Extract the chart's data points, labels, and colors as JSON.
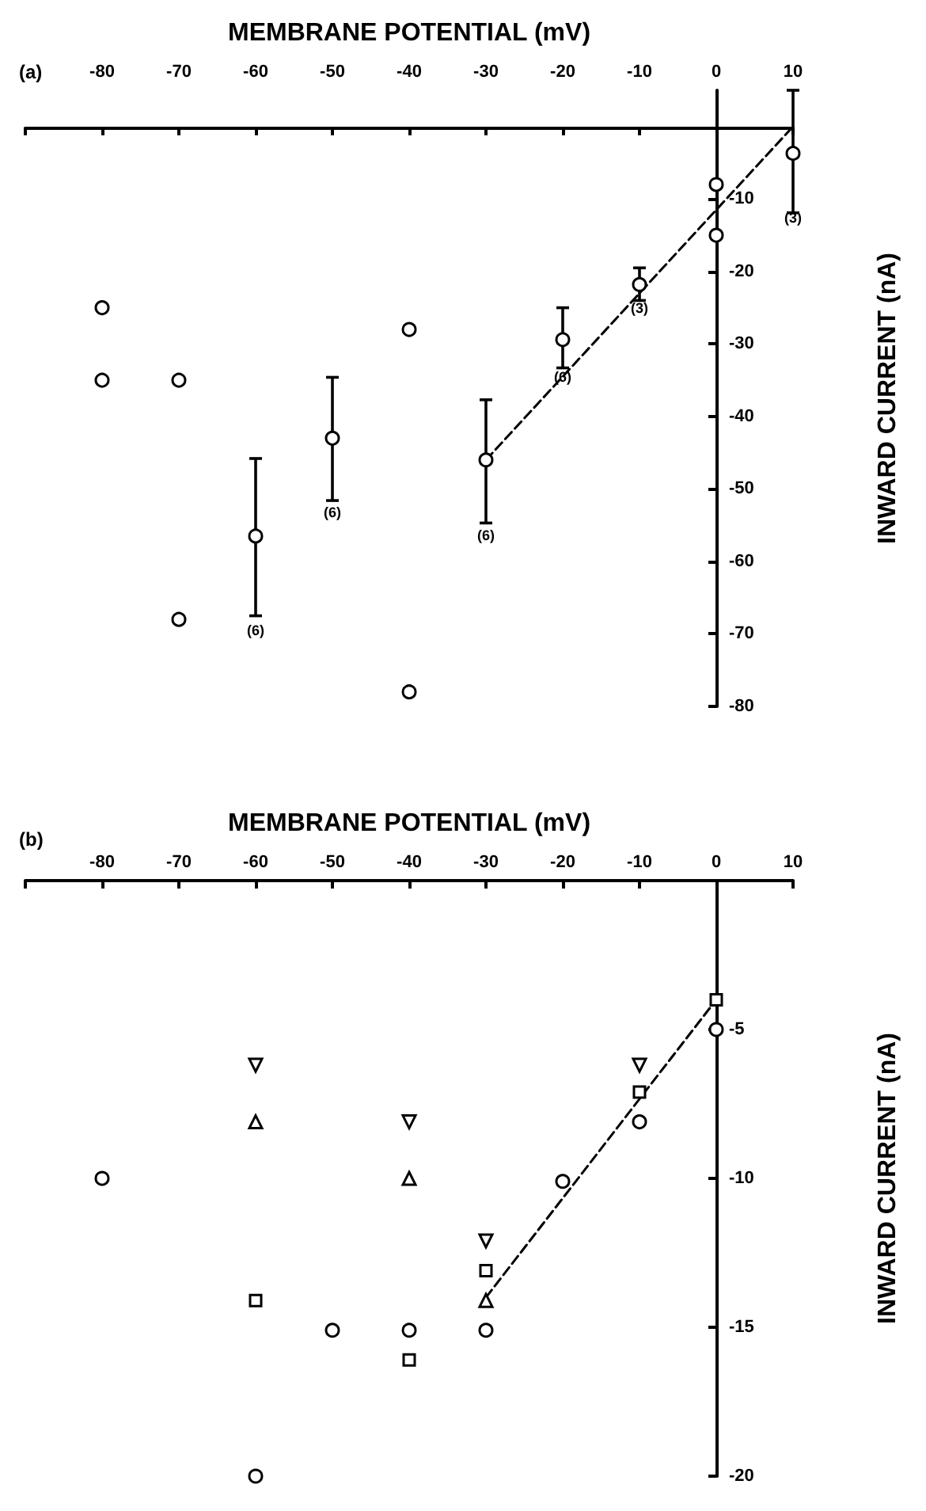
{
  "chart_data": [
    {
      "type": "scatter",
      "xlabel": "MEMBRANE POTENTIAL (mV)",
      "ylabel": "INWARD CURRENT (nA)",
      "xlim": [
        -90,
        10
      ],
      "xticks": [
        {
          "value": -90,
          "label": null
        },
        -80,
        -70,
        -60,
        -50,
        -40,
        -30,
        -20,
        -10,
        0,
        10
      ],
      "ylim": [
        -80,
        5
      ],
      "yticks": [
        -80,
        -70,
        -60,
        -50,
        -40,
        -30,
        -20,
        -10
      ],
      "grid": false,
      "series": [
        {
          "marker": "circle",
          "color": "#000000",
          "x": [
            -80,
            -80,
            -70,
            -70,
            -60,
            -50,
            -40,
            -40,
            -30,
            -20,
            -10,
            0,
            0,
            10
          ],
          "values": [
            -25,
            -35,
            -35,
            -68,
            -56.5,
            -43,
            -28,
            -78,
            -46,
            -29.4,
            -21.8,
            -8,
            -15,
            -3.7
          ],
          "errors": [
            null,
            null,
            null,
            null,
            [
              -67.5,
              -45.8
            ],
            [
              -51.6,
              -34.6
            ],
            null,
            null,
            [
              -54.7,
              -37.7
            ],
            [
              -33.3,
              -25
            ],
            [
              -24,
              -19.5
            ],
            null,
            null,
            [
              -11.9,
              5
            ]
          ]
        },
        {
          "type": "line",
          "marker": "none",
          "line_style": "dashed",
          "color": "#000000",
          "x": [
            -30,
            10
          ],
          "values": [
            -46,
            0
          ]
        }
      ],
      "annotations": [
        "(a)",
        {
          "text": "(6)",
          "x": -60,
          "y": -67.5
        },
        {
          "text": "(6)",
          "x": -50,
          "y": -51.6
        },
        {
          "text": "(6)",
          "x": -30,
          "y": -54.7
        },
        {
          "text": "(6)",
          "x": -20,
          "y": -33.3
        },
        {
          "text": "(3)",
          "x": -10,
          "y": -24
        },
        {
          "text": "(3)",
          "x": 10,
          "y": -11.9
        }
      ]
    },
    {
      "type": "scatter",
      "xlabel": "MEMBRANE POTENTIAL (mV)",
      "ylabel": "INWARD CURRENT (nA)",
      "xlim": [
        -90,
        10
      ],
      "xticks": [
        {
          "value": -90,
          "label": null
        },
        -80,
        -70,
        -60,
        -50,
        -40,
        -30,
        -20,
        -10,
        0,
        10
      ],
      "ylim": [
        -20,
        0
      ],
      "yticks": [
        -20,
        -15,
        -10,
        -5
      ],
      "grid": false,
      "series": [
        {
          "marker": "circle",
          "color": "#000000",
          "x": [
            -80,
            -60,
            -50,
            -40,
            -30,
            -20,
            -10,
            0
          ],
          "values": [
            -10,
            -20,
            -15.1,
            -15.1,
            -15.1,
            -10.1,
            -8.1,
            -5
          ]
        },
        {
          "marker": "square",
          "color": "#000000",
          "x": [
            -60,
            -40,
            -30,
            -10,
            0
          ],
          "values": [
            -14.1,
            -16.1,
            -13.1,
            -7.1,
            -4
          ]
        },
        {
          "marker": "triangle",
          "color": "#000000",
          "x": [
            -60,
            -40,
            -30
          ],
          "values": [
            -8.1,
            -10,
            -14.1
          ]
        },
        {
          "marker": "triangle-down",
          "color": "#000000",
          "x": [
            -60,
            -40,
            -30,
            -10
          ],
          "values": [
            -6.2,
            -8.1,
            -12.1,
            -6.2
          ]
        },
        {
          "type": "line",
          "marker": "none",
          "line_style": "dashed",
          "color": "#000000",
          "x": [
            -30,
            0
          ],
          "values": [
            -14,
            -4
          ]
        }
      ],
      "annotations": [
        "(b)"
      ]
    }
  ]
}
